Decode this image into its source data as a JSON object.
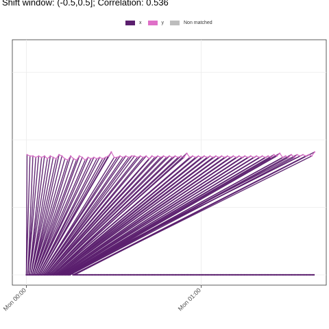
{
  "title": "Shift window: (-0.5,0.5]; Correlation: 0.536",
  "legend": [
    {
      "label": "x",
      "color": "#5b1f6e"
    },
    {
      "label": "y",
      "color": "#df70c8"
    },
    {
      "label": "Non matched",
      "color": "#bdbdbd"
    }
  ],
  "chart_data": {
    "type": "line",
    "title": "Shift window: (-0.5,0.5]; Correlation: 0.536",
    "xlabel": "",
    "ylabel": "",
    "x_ticks": [
      "Mon 00:00",
      "Mon 01:00"
    ],
    "x_tick_minutes": [
      0,
      60
    ],
    "xlim_minutes": [
      -5,
      70
    ],
    "ylim": [
      -0.1,
      1.6
    ],
    "y_grid": [
      0,
      0.5,
      1,
      1.5
    ],
    "grid": true,
    "legend_position": "top",
    "series": [
      {
        "name": "x",
        "points": [
          [
            0,
            0
          ],
          [
            5,
            0
          ],
          [
            6.4,
            0
          ],
          [
            7.6,
            0
          ],
          [
            8.1,
            0
          ],
          [
            8.5,
            0
          ],
          [
            8.8,
            0
          ],
          [
            9,
            0
          ],
          [
            9.3,
            0
          ],
          [
            9.5,
            0
          ],
          [
            9.8,
            0
          ],
          [
            10,
            0
          ],
          [
            10.2,
            0
          ],
          [
            10.5,
            0
          ],
          [
            11,
            0
          ],
          [
            11.5,
            0
          ],
          [
            12,
            0
          ],
          [
            12.5,
            0
          ],
          [
            13,
            0
          ],
          [
            13.5,
            0
          ],
          [
            14,
            0
          ],
          [
            14.5,
            0
          ],
          [
            15,
            0
          ],
          [
            15.5,
            0
          ],
          [
            16,
            0
          ],
          [
            16.5,
            0
          ],
          [
            17,
            0
          ],
          [
            17.5,
            0
          ],
          [
            18,
            0
          ],
          [
            18.5,
            0
          ],
          [
            19,
            0.03
          ],
          [
            19.5,
            0
          ],
          [
            20,
            0
          ],
          [
            20.5,
            0
          ],
          [
            21,
            0
          ],
          [
            21.5,
            0
          ],
          [
            22,
            0
          ],
          [
            22.5,
            0
          ],
          [
            23,
            0
          ],
          [
            23.5,
            0
          ],
          [
            24,
            0
          ],
          [
            24.5,
            0
          ],
          [
            25,
            0
          ],
          [
            25.5,
            0
          ],
          [
            26,
            0
          ],
          [
            26.5,
            0
          ],
          [
            27,
            0
          ],
          [
            27.5,
            0
          ],
          [
            28,
            0
          ],
          [
            28.5,
            0
          ],
          [
            29,
            0
          ],
          [
            29.5,
            0
          ],
          [
            30,
            0
          ],
          [
            30.5,
            0
          ],
          [
            31,
            0
          ],
          [
            31.5,
            0
          ],
          [
            32,
            0
          ],
          [
            32.5,
            0
          ],
          [
            33,
            0
          ],
          [
            33.5,
            0
          ],
          [
            34,
            0
          ],
          [
            34.5,
            0
          ],
          [
            35,
            0
          ],
          [
            35.5,
            0
          ],
          [
            36,
            0
          ],
          [
            36.5,
            0
          ],
          [
            37,
            0
          ],
          [
            37.5,
            0
          ],
          [
            38,
            0
          ],
          [
            38.5,
            0
          ],
          [
            39,
            0
          ],
          [
            39.5,
            0
          ],
          [
            40,
            0
          ],
          [
            40.5,
            0
          ],
          [
            41,
            0
          ],
          [
            41.5,
            0
          ],
          [
            42,
            0
          ],
          [
            42.5,
            0
          ],
          [
            43,
            0
          ],
          [
            43.5,
            0
          ],
          [
            44,
            0
          ],
          [
            44.5,
            0
          ],
          [
            45,
            0
          ],
          [
            45.5,
            0
          ],
          [
            46,
            0
          ],
          [
            46.5,
            0
          ],
          [
            47,
            0
          ],
          [
            47.5,
            0
          ],
          [
            48,
            0
          ],
          [
            48.5,
            0
          ],
          [
            49,
            0
          ],
          [
            49.5,
            0
          ],
          [
            50,
            0
          ],
          [
            50.5,
            0
          ],
          [
            51,
            0
          ],
          [
            51.5,
            0
          ],
          [
            52,
            0
          ],
          [
            52.5,
            0
          ],
          [
            53,
            0
          ],
          [
            53.5,
            0
          ],
          [
            54,
            0
          ],
          [
            54.5,
            0
          ],
          [
            55,
            0
          ],
          [
            55.5,
            0
          ],
          [
            56,
            0
          ],
          [
            56.5,
            0
          ],
          [
            57,
            0
          ],
          [
            57.5,
            0
          ],
          [
            58,
            0
          ],
          [
            58.5,
            0
          ],
          [
            59,
            0
          ],
          [
            59.5,
            0
          ],
          [
            60,
            0
          ],
          [
            60.5,
            0
          ],
          [
            61,
            0
          ],
          [
            61.5,
            0
          ],
          [
            62,
            0
          ],
          [
            62.5,
            0
          ],
          [
            63,
            0
          ],
          [
            63.5,
            0
          ],
          [
            64,
            0
          ],
          [
            64.5,
            0
          ],
          [
            65,
            0
          ],
          [
            65.5,
            0
          ],
          [
            66,
            0
          ],
          [
            66.5,
            0
          ],
          [
            67,
            0
          ],
          [
            67.5,
            0
          ],
          [
            68,
            0
          ],
          [
            68.5,
            0
          ],
          [
            69,
            0
          ],
          [
            69.5,
            0
          ],
          [
            70,
            0
          ],
          [
            70.5,
            0
          ],
          [
            71,
            0
          ],
          [
            71.5,
            0
          ],
          [
            72,
            0
          ],
          [
            72.5,
            0
          ],
          [
            73,
            0
          ],
          [
            73.5,
            0
          ],
          [
            74,
            0
          ],
          [
            74.5,
            0
          ],
          [
            75,
            0
          ],
          [
            75.5,
            0
          ],
          [
            76,
            0
          ],
          [
            76.5,
            0
          ],
          [
            77,
            0
          ],
          [
            77.5,
            0
          ],
          [
            78,
            0
          ],
          [
            78.5,
            0
          ],
          [
            79,
            0
          ],
          [
            79.5,
            0
          ],
          [
            80,
            0
          ],
          [
            80.5,
            0
          ],
          [
            81,
            0
          ],
          [
            81.5,
            0
          ],
          [
            82,
            0
          ],
          [
            82.5,
            0
          ],
          [
            83,
            0
          ],
          [
            83.5,
            0
          ],
          [
            84,
            0
          ],
          [
            84.5,
            0
          ],
          [
            85,
            0
          ],
          [
            85.5,
            0
          ],
          [
            86,
            0
          ],
          [
            86.5,
            0
          ],
          [
            87,
            0
          ],
          [
            87.5,
            0
          ],
          [
            88,
            0
          ],
          [
            88.5,
            0
          ],
          [
            89,
            0
          ],
          [
            89.5,
            0
          ],
          [
            90,
            0
          ],
          [
            90.5,
            0
          ],
          [
            91,
            0
          ],
          [
            91.5,
            0
          ],
          [
            92,
            0
          ],
          [
            92.5,
            0
          ],
          [
            93,
            0
          ],
          [
            93.5,
            0
          ],
          [
            94,
            0
          ],
          [
            94.5,
            0
          ],
          [
            95,
            0
          ],
          [
            95.5,
            0
          ],
          [
            96,
            0
          ],
          [
            96.5,
            0
          ],
          [
            97,
            0
          ],
          [
            97.5,
            0
          ],
          [
            98,
            0
          ],
          [
            98.5,
            0
          ],
          [
            99,
            0
          ],
          [
            99.5,
            0
          ]
        ]
      },
      {
        "name": "y",
        "points": [
          [
            0,
            0.89
          ],
          [
            1,
            0.88
          ],
          [
            2,
            0.88
          ],
          [
            3,
            0.87
          ],
          [
            4,
            0.88
          ],
          [
            5,
            0.87
          ],
          [
            6,
            0.88
          ],
          [
            7,
            0.86
          ],
          [
            8,
            0.88
          ],
          [
            9,
            0.87
          ],
          [
            10,
            0.86
          ],
          [
            11,
            0.89
          ],
          [
            12,
            0.88
          ],
          [
            13,
            0.86
          ],
          [
            14,
            0.85
          ],
          [
            15,
            0.88
          ],
          [
            16,
            0.86
          ],
          [
            17,
            0.85
          ],
          [
            18,
            0.88
          ],
          [
            19,
            0.87
          ],
          [
            20,
            0.85
          ],
          [
            21,
            0.87
          ],
          [
            22,
            0.86
          ],
          [
            23,
            0.87
          ],
          [
            24,
            0.86
          ],
          [
            25,
            0.87
          ],
          [
            26,
            0.86
          ],
          [
            27,
            0.87
          ],
          [
            28,
            0.88
          ],
          [
            29,
            0.91
          ],
          [
            30,
            0.87
          ],
          [
            31,
            0.87
          ],
          [
            32,
            0.88
          ],
          [
            33,
            0.87
          ],
          [
            34,
            0.88
          ],
          [
            35,
            0.87
          ],
          [
            36,
            0.88
          ],
          [
            37,
            0.88
          ],
          [
            38,
            0.87
          ],
          [
            39,
            0.88
          ],
          [
            40,
            0.87
          ],
          [
            41,
            0.88
          ],
          [
            42,
            0.86
          ],
          [
            43,
            0.88
          ],
          [
            44,
            0.87
          ],
          [
            45,
            0.88
          ],
          [
            46,
            0.87
          ],
          [
            47,
            0.88
          ],
          [
            48,
            0.87
          ],
          [
            49,
            0.88
          ],
          [
            50,
            0.87
          ],
          [
            51,
            0.88
          ],
          [
            52,
            0.87
          ],
          [
            53,
            0.88
          ],
          [
            54,
            0.87
          ],
          [
            55,
            0.9
          ],
          [
            56,
            0.87
          ],
          [
            57,
            0.88
          ],
          [
            58,
            0.87
          ],
          [
            59,
            0.88
          ],
          [
            60,
            0.87
          ],
          [
            61,
            0.88
          ],
          [
            62,
            0.87
          ],
          [
            63,
            0.88
          ],
          [
            64,
            0.87
          ],
          [
            65,
            0.88
          ],
          [
            66,
            0.87
          ],
          [
            67,
            0.88
          ],
          [
            68,
            0.87
          ],
          [
            69,
            0.88
          ],
          [
            70,
            0.87
          ],
          [
            71,
            0.88
          ],
          [
            72,
            0.87
          ],
          [
            73,
            0.88
          ],
          [
            74,
            0.87
          ],
          [
            75,
            0.88
          ],
          [
            76,
            0.87
          ],
          [
            77,
            0.88
          ],
          [
            78,
            0.87
          ],
          [
            79,
            0.88
          ],
          [
            80,
            0.87
          ],
          [
            81,
            0.88
          ],
          [
            82,
            0.87
          ],
          [
            83,
            0.88
          ],
          [
            84,
            0.87
          ],
          [
            85,
            0.89
          ],
          [
            86,
            0.88
          ],
          [
            87,
            0.9
          ],
          [
            88,
            0.87
          ],
          [
            89,
            0.88
          ],
          [
            90,
            0.87
          ],
          [
            91,
            0.89
          ],
          [
            92,
            0.87
          ],
          [
            93,
            0.89
          ],
          [
            94,
            0.88
          ],
          [
            95,
            0.89
          ],
          [
            96,
            0.88
          ],
          [
            97,
            0.89
          ],
          [
            98,
            0.88
          ],
          [
            99,
            0.91
          ]
        ]
      }
    ]
  }
}
